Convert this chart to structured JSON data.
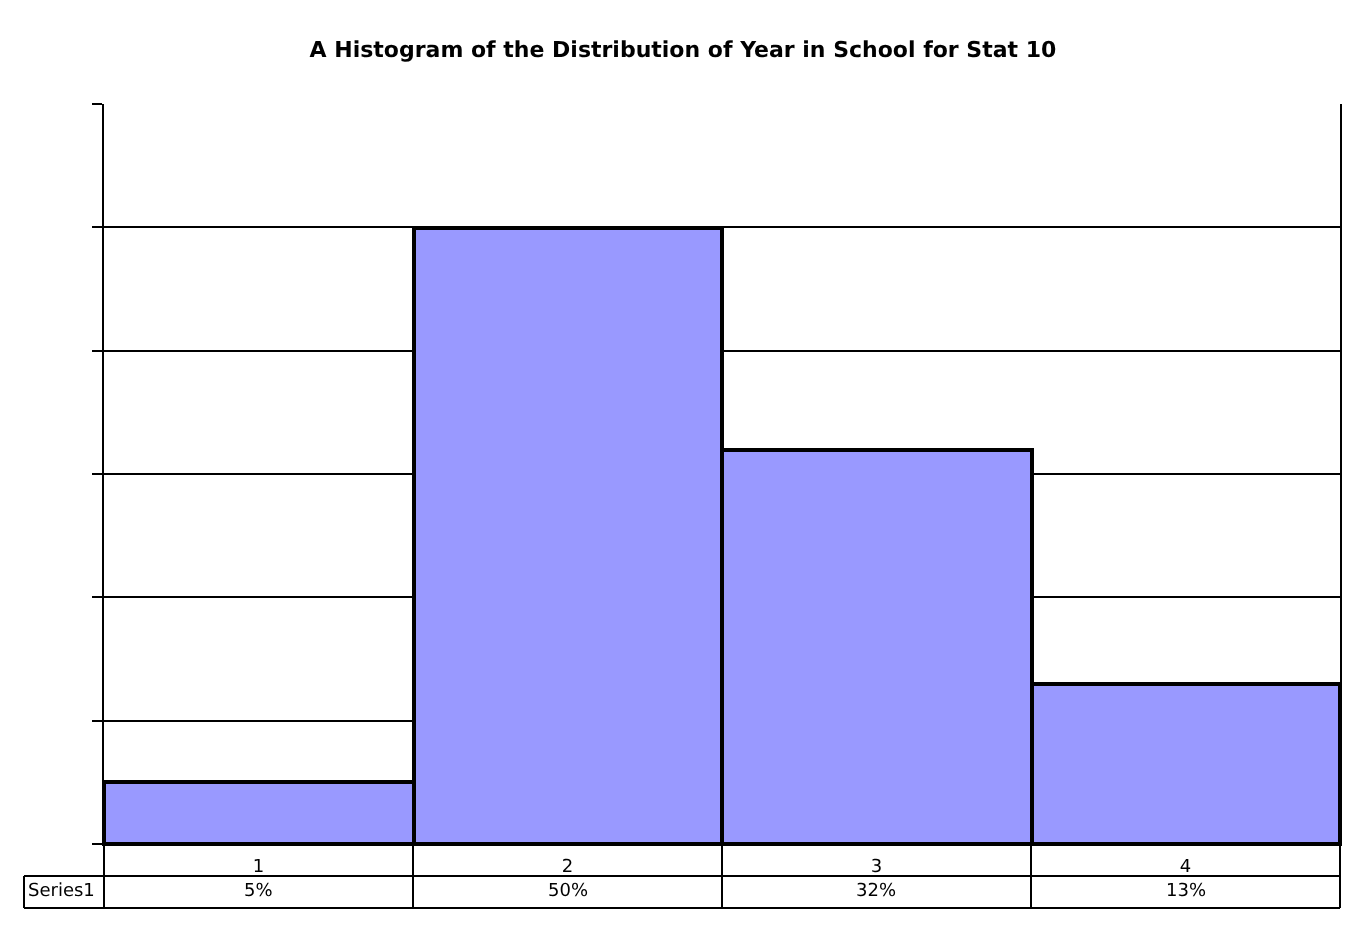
{
  "chart_data": {
    "type": "bar",
    "title": "A Histogram of the Distribution of Year in School for Stat 10",
    "categories": [
      "1",
      "2",
      "3",
      "4"
    ],
    "series": [
      {
        "name": "Series1",
        "color": "#9999ff",
        "values": [
          5,
          50,
          32,
          13
        ],
        "value_labels": [
          "5%",
          "50%",
          "32%",
          "13%"
        ]
      }
    ],
    "ylim": [
      0,
      60
    ],
    "yticks": [
      {
        "value": 0,
        "label": null
      },
      {
        "value": 10,
        "label": null
      },
      {
        "value": 20,
        "label": null
      },
      {
        "value": 30,
        "label": null
      },
      {
        "value": 40,
        "label": null
      },
      {
        "value": 50,
        "label": null
      },
      {
        "value": 60,
        "label": null
      }
    ],
    "grid": "y",
    "legend": "bottom left",
    "tick_labels": "x"
  }
}
